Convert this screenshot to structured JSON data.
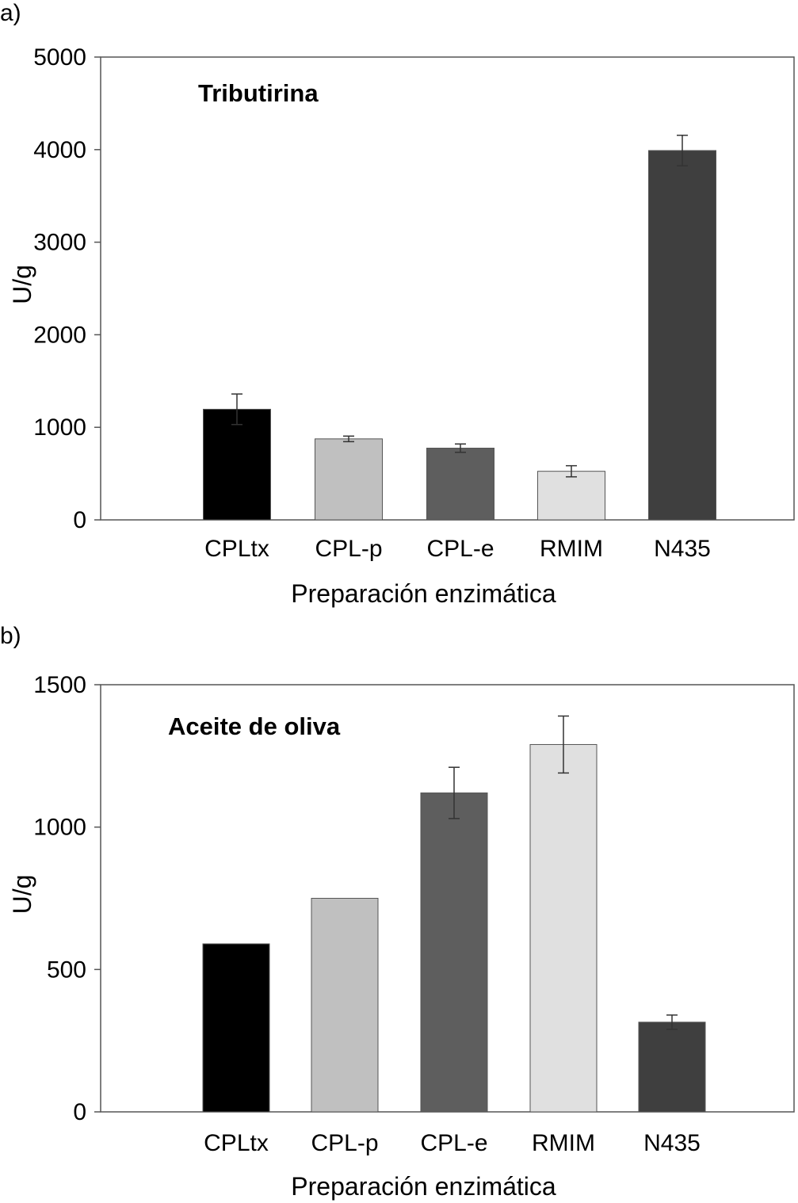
{
  "chart_data": [
    {
      "panel_label": "a)",
      "type": "bar",
      "title": "Tributirina",
      "xlabel": "Preparación enzimática",
      "ylabel": "U/g",
      "ylim": [
        0,
        5000
      ],
      "yticks": [
        0,
        1000,
        2000,
        3000,
        4000,
        5000
      ],
      "categories": [
        "CPLtx",
        "CPL-p",
        "CPL-e",
        "RMIM",
        "N435"
      ],
      "values": [
        1195,
        875,
        775,
        525,
        3990
      ],
      "errors": [
        165,
        30,
        45,
        60,
        165
      ],
      "bar_colors": [
        "#000000",
        "#c0c0c0",
        "#5e5e5e",
        "#e0e0e0",
        "#3f3f3f"
      ],
      "grid": false
    },
    {
      "panel_label": "b)",
      "type": "bar",
      "title": "Aceite de oliva",
      "xlabel": "Preparación enzimática",
      "ylabel": "U/g",
      "ylim": [
        0,
        1500
      ],
      "yticks": [
        0,
        500,
        1000,
        1500
      ],
      "categories": [
        "CPLtx",
        "CPL-p",
        "CPL-e",
        "RMIM",
        "N435"
      ],
      "values": [
        590,
        750,
        1120,
        1290,
        315
      ],
      "errors": [
        0,
        0,
        90,
        100,
        25
      ],
      "bar_colors": [
        "#000000",
        "#c0c0c0",
        "#5e5e5e",
        "#e0e0e0",
        "#3f3f3f"
      ],
      "grid": false
    }
  ]
}
